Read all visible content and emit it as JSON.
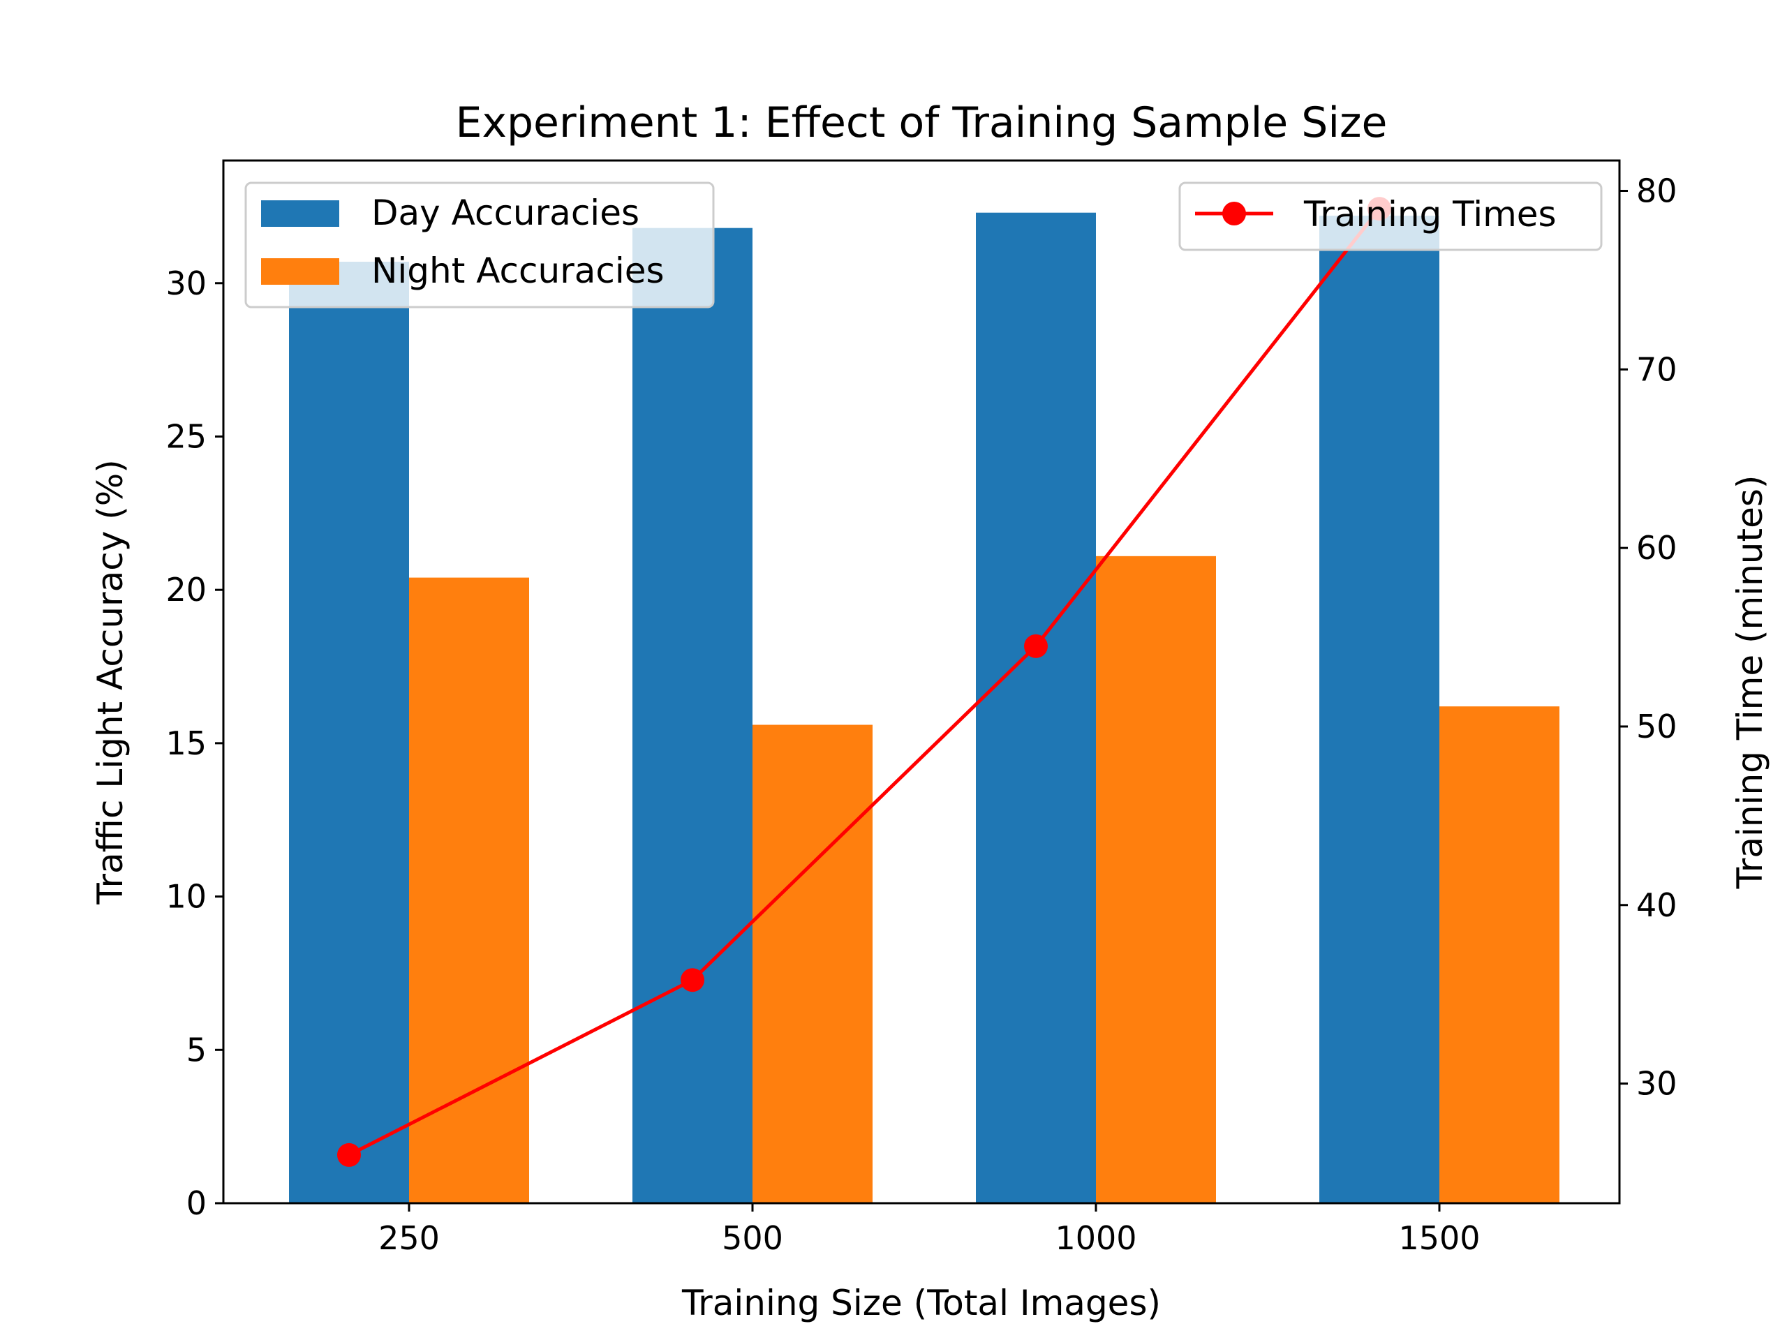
{
  "chart_data": {
    "type": "bar",
    "title": "Experiment 1: Effect of Training Sample Size",
    "xlabel": "Training Size (Total Images)",
    "ylabel": "Traffic Light Accuracy (%)",
    "y2label": "Training Time (minutes)",
    "categories": [
      "250",
      "500",
      "1000",
      "1500"
    ],
    "ylim": [
      0,
      34
    ],
    "y2lim": [
      23.3,
      81.7
    ],
    "yticks": [
      0,
      5,
      10,
      15,
      20,
      25,
      30
    ],
    "y2ticks": [
      30,
      40,
      50,
      60,
      70,
      80
    ],
    "grid": false,
    "series": [
      {
        "name": "Day Accuracies",
        "kind": "bar",
        "color": "#1f77b4",
        "values": [
          30.7,
          31.8,
          32.3,
          32.2
        ]
      },
      {
        "name": "Night Accuracies",
        "kind": "bar",
        "color": "#ff7f0e",
        "values": [
          20.4,
          15.6,
          21.1,
          16.2
        ]
      },
      {
        "name": "Training Times",
        "kind": "line",
        "axis": "right",
        "color": "#ff0000",
        "marker": "circle",
        "values": [
          26.0,
          35.8,
          54.5,
          79.0
        ]
      }
    ],
    "legends": [
      {
        "placement": "upper-left",
        "entries": [
          "Day Accuracies",
          "Night Accuracies"
        ]
      },
      {
        "placement": "upper-right",
        "entries": [
          "Training Times"
        ]
      }
    ]
  }
}
